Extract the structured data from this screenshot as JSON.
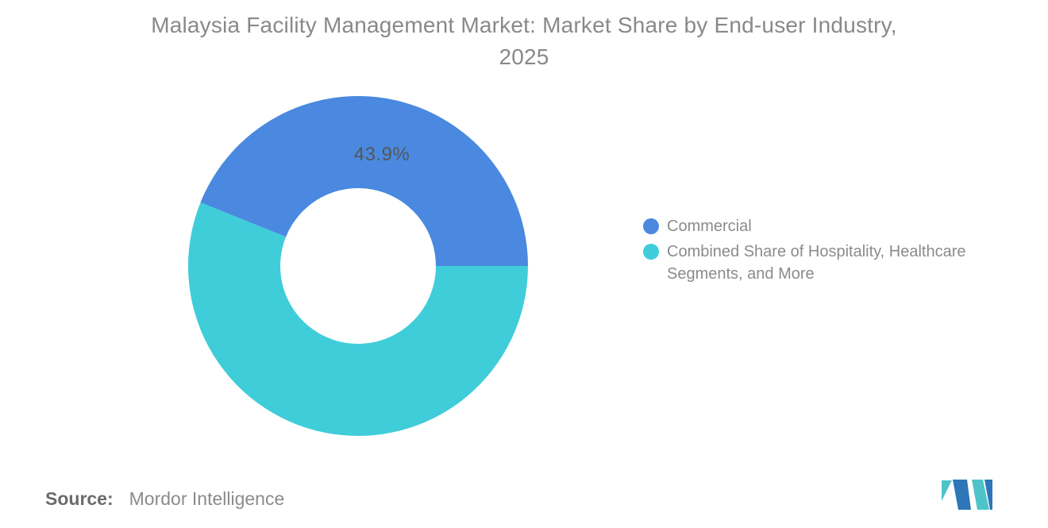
{
  "title": {
    "lines": [
      "Malaysia Facility Management Market: Market Share by End-user Industry,",
      "2025"
    ],
    "full": "Malaysia Facility Management Market: Market Share by End-user Industry, 2025"
  },
  "chart_data": {
    "type": "pie",
    "subtype": "donut",
    "title": "Malaysia Facility Management Market: Market Share by End-user Industry, 2025",
    "slices": [
      {
        "label": "Commercial",
        "value": 43.9,
        "percent_label": "43.9%",
        "color": "#4A89DF"
      },
      {
        "label": "Combined Share of Hospitality, Healthcare Segments, and More",
        "value": 56.1,
        "percent_label": null,
        "color": "#3FCDD9"
      }
    ],
    "start_angle_deg": 158.04,
    "inner_radius_ratio": 0.458,
    "legend_position": "right",
    "data_label_color": "#55565A",
    "background": "#FFFFFF"
  },
  "source": {
    "prefix": "Source:",
    "name": "Mordor Intelligence"
  },
  "branding": {
    "logo": "mordor-intelligence-logo",
    "logo_blue": "#2E76B7",
    "logo_teal": "#4FC4C8"
  }
}
